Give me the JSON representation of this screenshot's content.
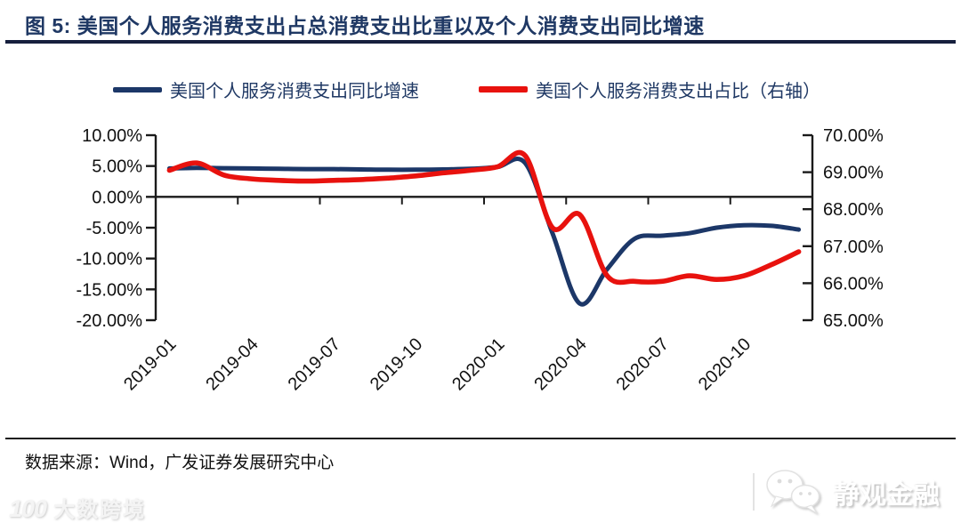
{
  "header": {
    "title": "图 5:  美国个人服务消费支出占总消费支出比重以及个人消费支出同比增速"
  },
  "legend": [
    {
      "label": "美国个人服务消费支出同比增速",
      "color": "#1c3768"
    },
    {
      "label": "美国个人服务消费支出占比（右轴）",
      "color": "#e8120e"
    }
  ],
  "footer": {
    "source": "数据来源：Wind，广发证券发展研究中心"
  },
  "watermarks": {
    "bottom_right": "静观金融",
    "bottom_left_logo": "100",
    "bottom_left": "大数跨境"
  },
  "chart_data": {
    "type": "line",
    "title": "图 5: 美国个人服务消费支出占总消费支出比重以及个人消费支出同比增速",
    "x": [
      "2019-01",
      "2019-02",
      "2019-03",
      "2019-04",
      "2019-05",
      "2019-06",
      "2019-07",
      "2019-08",
      "2019-09",
      "2019-10",
      "2019-11",
      "2019-12",
      "2020-01",
      "2020-02",
      "2020-03",
      "2020-04",
      "2020-05",
      "2020-06",
      "2020-07",
      "2020-08",
      "2020-09",
      "2020-10",
      "2020-11",
      "2020-12"
    ],
    "x_tick_labels": [
      "2019-01",
      "2019-04",
      "2019-07",
      "2019-10",
      "2020-01",
      "2020-04",
      "2020-07",
      "2020-10"
    ],
    "x_tick_indices": [
      0,
      3,
      6,
      9,
      12,
      15,
      18,
      21
    ],
    "series": [
      {
        "name": "美国个人服务消费支出同比增速",
        "axis": "left",
        "color": "#1c3768",
        "values": [
          4.6,
          4.7,
          4.65,
          4.6,
          4.55,
          4.5,
          4.5,
          4.45,
          4.4,
          4.4,
          4.45,
          4.55,
          4.85,
          5.5,
          -5.9,
          -17.3,
          -11.7,
          -6.8,
          -6.3,
          -5.9,
          -5.0,
          -4.6,
          -4.7,
          -5.3
        ]
      },
      {
        "name": "美国个人服务消费支出占比（右轴）",
        "axis": "right",
        "color": "#e8120e",
        "values": [
          69.05,
          69.25,
          68.92,
          68.82,
          68.78,
          68.76,
          68.78,
          68.8,
          68.84,
          68.9,
          68.98,
          69.05,
          69.15,
          69.45,
          67.5,
          67.85,
          66.2,
          66.05,
          66.05,
          66.2,
          66.1,
          66.2,
          66.5,
          66.85
        ]
      }
    ],
    "left_axis": {
      "min": -20,
      "max": 10,
      "tick_values": [
        10,
        5,
        0,
        -5,
        -10,
        -15,
        -20
      ],
      "tick_labels": [
        "10.00%",
        "5.00%",
        "0.00%",
        "-5.00%",
        "-10.00%",
        "-15.00%",
        "-20.00%"
      ]
    },
    "right_axis": {
      "min": 65,
      "max": 70,
      "tick_values": [
        70,
        69,
        68,
        67,
        66,
        65
      ],
      "tick_labels": [
        "70.00%",
        "69.00%",
        "68.00%",
        "67.00%",
        "66.00%",
        "65.00%"
      ]
    },
    "grid": false,
    "legend_position": "top"
  }
}
